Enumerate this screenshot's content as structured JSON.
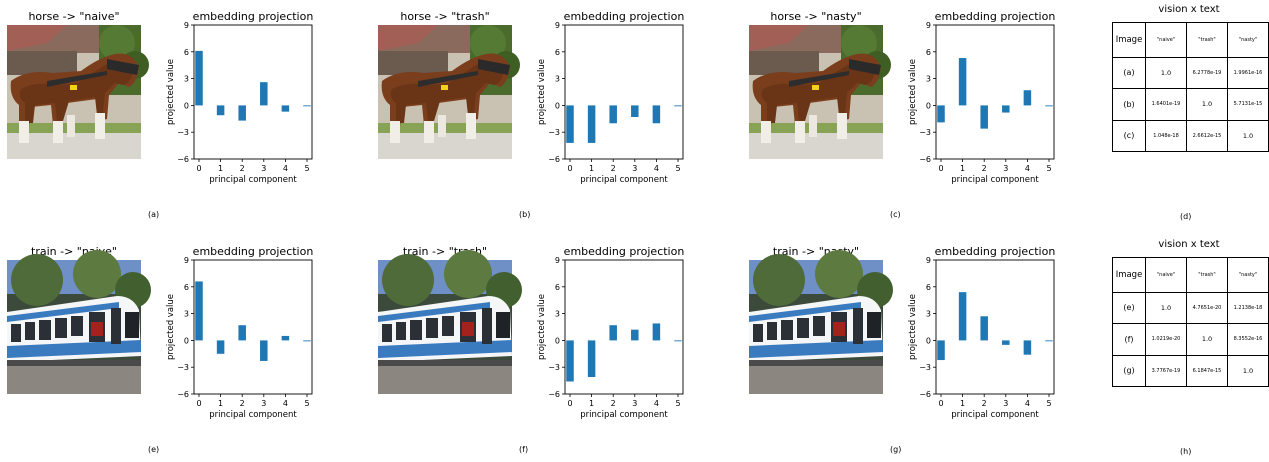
{
  "rows": [
    {
      "panels": [
        {
          "title": "horse -> \"naive\"",
          "image": "horse",
          "label": "(a)",
          "chart": {
            "title": "embedding projection",
            "values": [
              6.1,
              -1.1,
              -1.7,
              2.6,
              -0.7,
              -0.1
            ]
          }
        },
        {
          "title": "horse -> \"trash\"",
          "image": "horse",
          "label": "(b)",
          "chart": {
            "title": "embedding projection",
            "values": [
              -4.2,
              -4.2,
              -2.0,
              -1.3,
              -2.0,
              -0.1
            ]
          }
        },
        {
          "title": "horse -> \"nasty\"",
          "image": "horse",
          "label": "(c)",
          "chart": {
            "title": "embedding projection",
            "values": [
              -1.9,
              5.3,
              -2.6,
              -0.8,
              1.7,
              -0.1
            ]
          }
        }
      ],
      "table": {
        "title": "vision x text",
        "label": "(d)",
        "header": [
          "Image",
          "\"naive\"",
          "\"trash\"",
          "\"nasty\""
        ],
        "rows": [
          [
            "(a)",
            "1.0",
            "6.2778e-19",
            "1.9961e-16"
          ],
          [
            "(b)",
            "1.6401e-19",
            "1.0",
            "5.7131e-15"
          ],
          [
            "(c)",
            "1.048e-18",
            "2.6612e-15",
            "1.0"
          ]
        ]
      }
    },
    {
      "panels": [
        {
          "title": "train -> \"naive\"",
          "image": "train",
          "label": "(e)",
          "chart": {
            "title": "embedding projection",
            "values": [
              6.6,
              -1.5,
              1.7,
              -2.3,
              0.5,
              -0.1
            ]
          }
        },
        {
          "title": "train -> \"trash\"",
          "image": "train",
          "label": "(f)",
          "chart": {
            "title": "embedding projection",
            "values": [
              -4.6,
              -4.1,
              1.7,
              1.2,
              1.9,
              -0.1
            ]
          }
        },
        {
          "title": "train -> \"nasty\"",
          "image": "train",
          "label": "(g)",
          "chart": {
            "title": "embedding projection",
            "values": [
              -2.2,
              5.4,
              2.7,
              -0.5,
              -1.6,
              -0.1
            ]
          }
        }
      ],
      "table": {
        "title": "vision x text",
        "label": "(h)",
        "header": [
          "Image",
          "\"naive\"",
          "\"trash\"",
          "\"nasty\""
        ],
        "rows": [
          [
            "(e)",
            "1.0",
            "4.7651e-20",
            "1.2138e-18"
          ],
          [
            "(f)",
            "1.0219e-20",
            "1.0",
            "8.3552e-16"
          ],
          [
            "(g)",
            "3.7767e-19",
            "6.1847e-15",
            "1.0"
          ]
        ]
      }
    }
  ],
  "chart_data": [
    {
      "type": "bar",
      "title": "embedding projection",
      "xlabel": "principal component",
      "ylabel": "projected value",
      "categories": [
        "0",
        "1",
        "2",
        "3",
        "4",
        "5"
      ],
      "values": [
        6.1,
        -1.1,
        -1.7,
        2.6,
        -0.7,
        -0.1
      ],
      "ylim": [
        -6,
        9
      ],
      "yticks": [
        -6,
        -3,
        0,
        3,
        6,
        9
      ],
      "grid": false,
      "color": "#1f77b4"
    },
    {
      "type": "bar",
      "title": "embedding projection",
      "xlabel": "principal component",
      "ylabel": "projected value",
      "categories": [
        "0",
        "1",
        "2",
        "3",
        "4",
        "5"
      ],
      "values": [
        -4.2,
        -4.2,
        -2.0,
        -1.3,
        -2.0,
        -0.1
      ],
      "ylim": [
        -6,
        9
      ],
      "yticks": [
        -6,
        -3,
        0,
        3,
        6,
        9
      ],
      "grid": false,
      "color": "#1f77b4"
    },
    {
      "type": "bar",
      "title": "embedding projection",
      "xlabel": "principal component",
      "ylabel": "projected value",
      "categories": [
        "0",
        "1",
        "2",
        "3",
        "4",
        "5"
      ],
      "values": [
        -1.9,
        5.3,
        -2.6,
        -0.8,
        1.7,
        -0.1
      ],
      "ylim": [
        -6,
        9
      ],
      "yticks": [
        -6,
        -3,
        0,
        3,
        6,
        9
      ],
      "grid": false,
      "color": "#1f77b4"
    },
    {
      "type": "bar",
      "title": "embedding projection",
      "xlabel": "principal component",
      "ylabel": "projected value",
      "categories": [
        "0",
        "1",
        "2",
        "3",
        "4",
        "5"
      ],
      "values": [
        6.6,
        -1.5,
        1.7,
        -2.3,
        0.5,
        -0.1
      ],
      "ylim": [
        -6,
        9
      ],
      "yticks": [
        -6,
        -3,
        0,
        3,
        6,
        9
      ],
      "grid": false,
      "color": "#1f77b4"
    },
    {
      "type": "bar",
      "title": "embedding projection",
      "xlabel": "principal component",
      "ylabel": "projected value",
      "categories": [
        "0",
        "1",
        "2",
        "3",
        "4",
        "5"
      ],
      "values": [
        -4.6,
        -4.1,
        1.7,
        1.2,
        1.9,
        -0.1
      ],
      "ylim": [
        -6,
        9
      ],
      "yticks": [
        -6,
        -3,
        0,
        3,
        6,
        9
      ],
      "grid": false,
      "color": "#1f77b4"
    },
    {
      "type": "bar",
      "title": "embedding projection",
      "xlabel": "principal component",
      "ylabel": "projected value",
      "categories": [
        "0",
        "1",
        "2",
        "3",
        "4",
        "5"
      ],
      "values": [
        -2.2,
        5.4,
        2.7,
        -0.5,
        -1.6,
        -0.1
      ],
      "ylim": [
        -6,
        9
      ],
      "yticks": [
        -6,
        -3,
        0,
        3,
        6,
        9
      ],
      "grid": false,
      "color": "#1f77b4"
    }
  ]
}
